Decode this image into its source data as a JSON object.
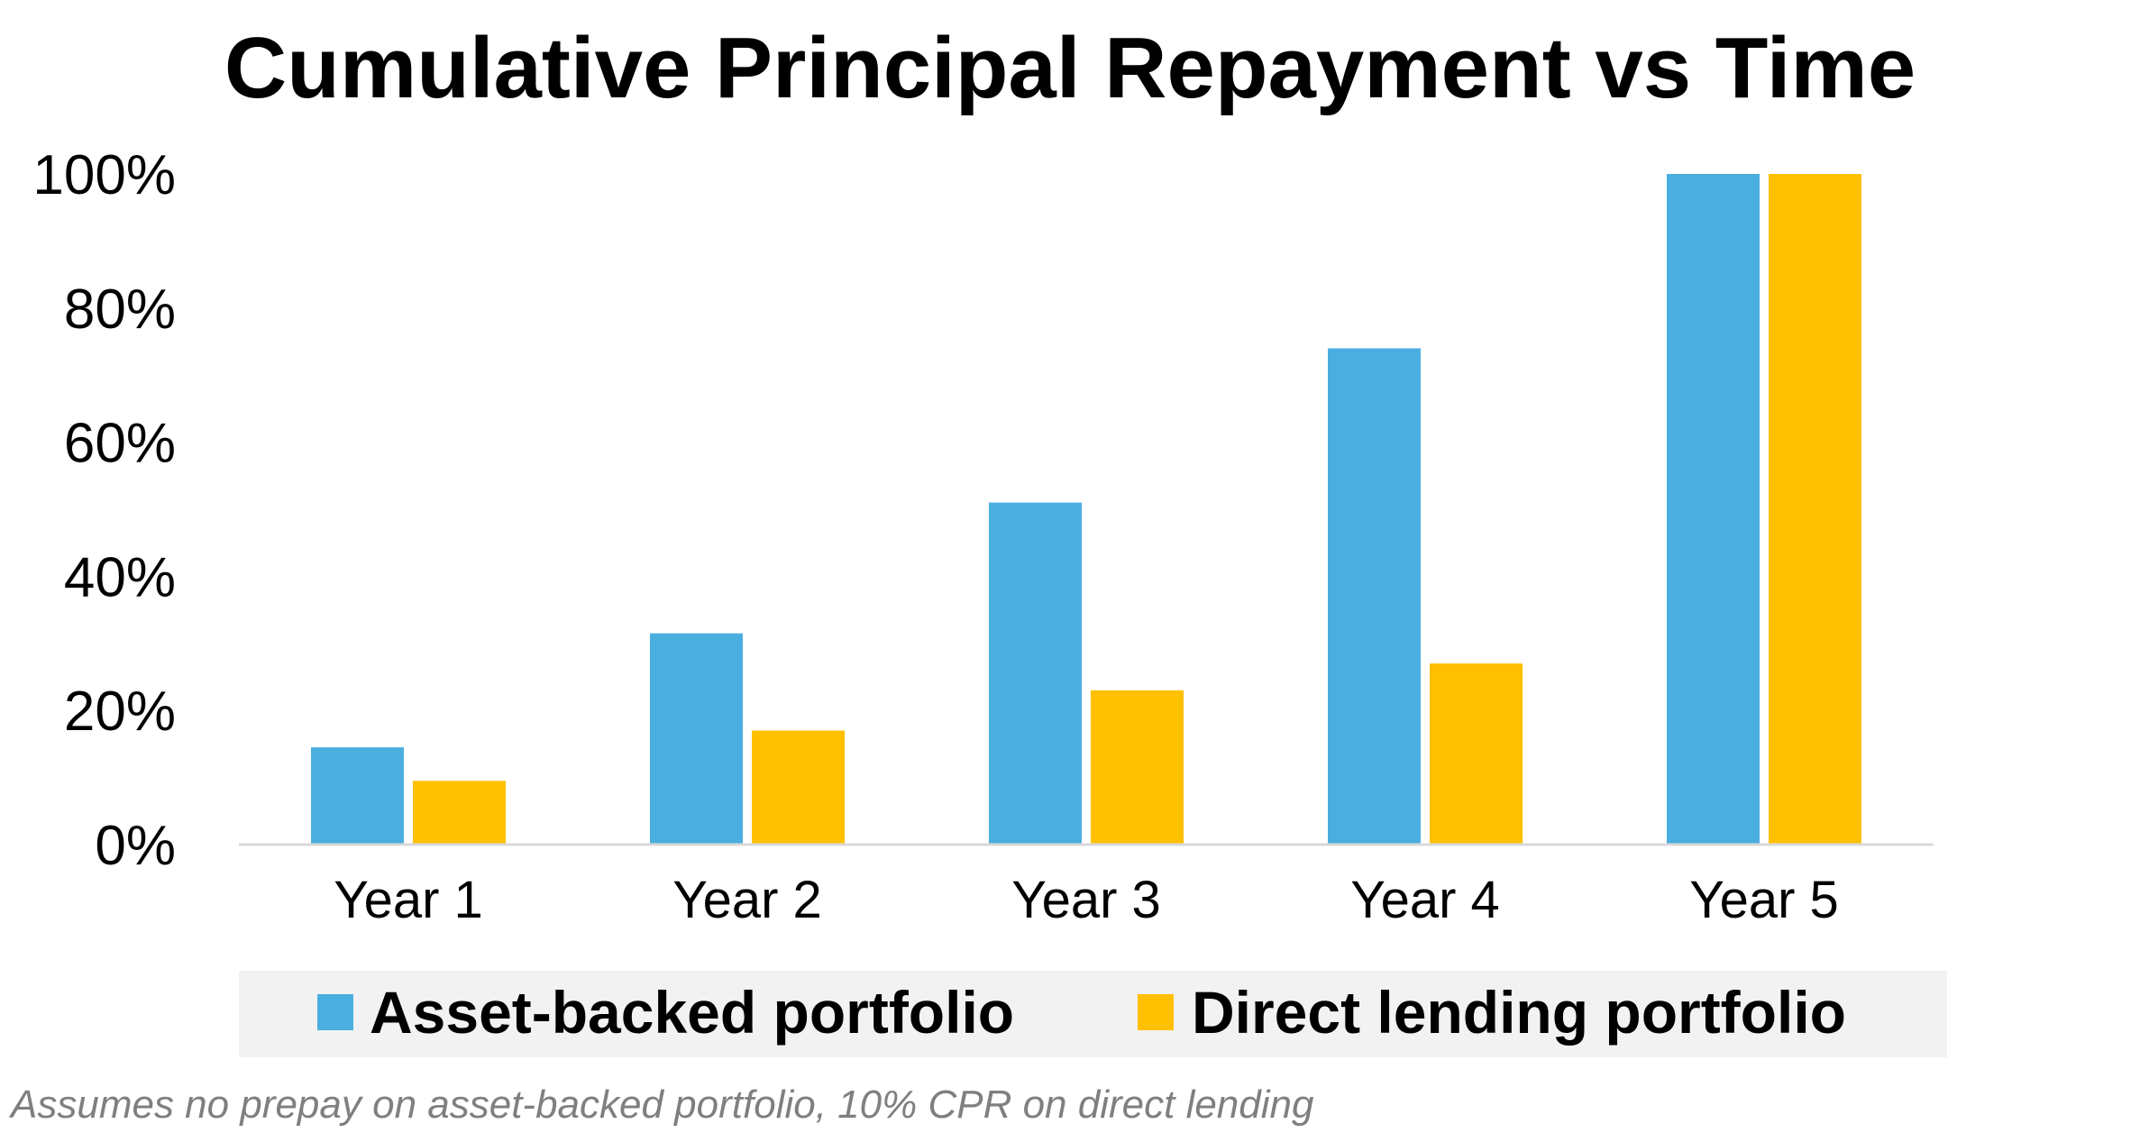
{
  "chart_data": {
    "type": "bar",
    "title": "Cumulative Principal Repayment vs Time",
    "categories": [
      "Year 1",
      "Year 2",
      "Year 3",
      "Year 4",
      "Year 5"
    ],
    "series": [
      {
        "name": "Asset-backed portfolio",
        "color": "#4AAFE0",
        "values": [
          14.5,
          31.5,
          51,
          74,
          100
        ]
      },
      {
        "name": "Direct lending portfolio",
        "color": "#FFC000",
        "values": [
          9.5,
          17,
          23,
          27,
          100
        ]
      }
    ],
    "ylim": [
      0,
      100
    ],
    "yticks": [
      0,
      20,
      40,
      60,
      80,
      100
    ],
    "ytick_labels": [
      "0%",
      "20%",
      "40%",
      "60%",
      "80%",
      "100%"
    ],
    "grid": false,
    "legend_position": "bottom",
    "legend_background": "#F2F2F2",
    "footnote": "Assumes no prepay on asset-backed portfolio, 10% CPR on direct lending"
  }
}
